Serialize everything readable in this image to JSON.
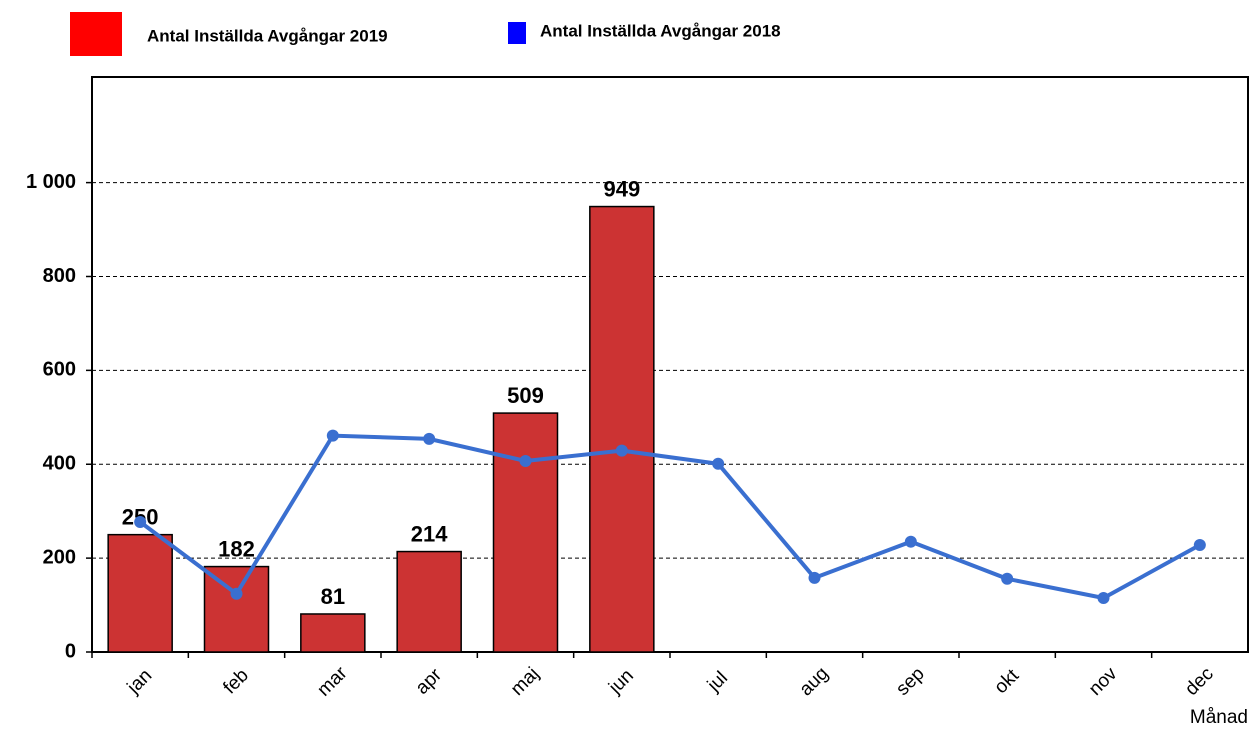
{
  "chart_data": {
    "type": "bar-line",
    "categories": [
      "jan",
      "feb",
      "mar",
      "apr",
      "maj",
      "jun",
      "jul",
      "aug",
      "sep",
      "okt",
      "nov",
      "dec"
    ],
    "x_label": "Månad",
    "series": [
      {
        "name": "Antal Inställda Avgångar 2019",
        "type": "bar",
        "color": "#cc3333",
        "legend_color": "#ff0000",
        "values": [
          250,
          182,
          81,
          214,
          509,
          949,
          null,
          null,
          null,
          null,
          null,
          null
        ]
      },
      {
        "name": "Antal Inställda Avgångar 2018",
        "type": "line",
        "color": "#3a6fd0",
        "legend_color": "#0000ff",
        "values": [
          277,
          124,
          461,
          454,
          407,
          429,
          401,
          158,
          235,
          156,
          115,
          228
        ]
      }
    ],
    "ylim": [
      0,
      1225
    ],
    "yticks": [
      0,
      200,
      400,
      600,
      800,
      {
        "value": 1000,
        "label": "1 000"
      }
    ],
    "grid": true
  }
}
